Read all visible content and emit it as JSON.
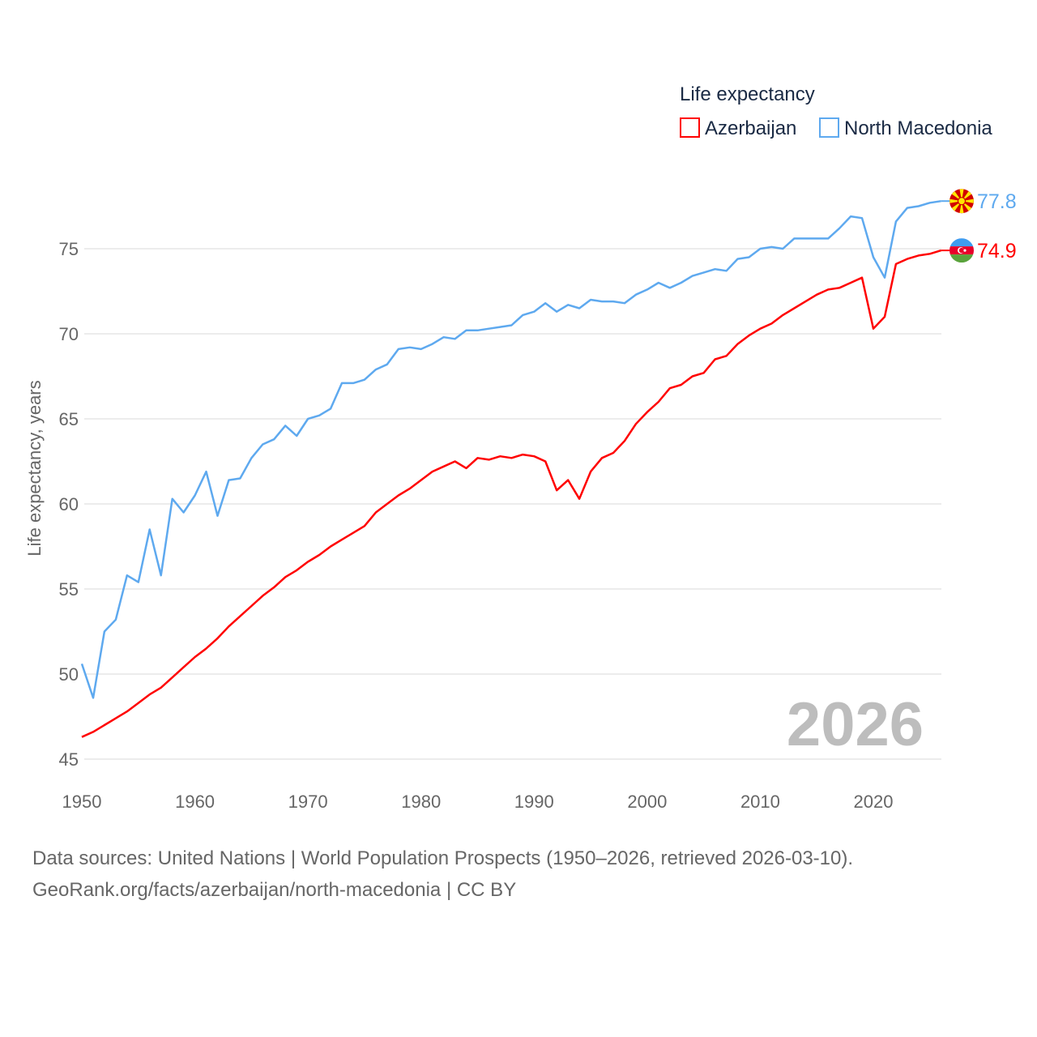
{
  "chart_data": {
    "type": "line",
    "title": "Life expectancy",
    "xlabel": "",
    "ylabel": "Life expectancy, years",
    "xlim": [
      1950,
      2026
    ],
    "ylim": [
      45,
      79
    ],
    "grid": true,
    "legend_position": "top-right",
    "x_ticks": [
      1950,
      1960,
      1970,
      1980,
      1990,
      2000,
      2010,
      2020
    ],
    "y_ticks": [
      45,
      50,
      55,
      60,
      65,
      70,
      75
    ],
    "current_year_label": "2026",
    "series": [
      {
        "name": "Azerbaijan",
        "color": "#ff0000",
        "end_label": "74.9",
        "flag": "azerbaijan-flag",
        "start_year": 1950,
        "values": [
          46.3,
          46.6,
          47.0,
          47.4,
          47.8,
          48.3,
          48.8,
          49.2,
          49.8,
          50.4,
          51.0,
          51.5,
          52.1,
          52.8,
          53.4,
          54.0,
          54.6,
          55.1,
          55.7,
          56.1,
          56.6,
          57.0,
          57.5,
          57.9,
          58.3,
          58.7,
          59.5,
          60.0,
          60.5,
          60.9,
          61.4,
          61.9,
          62.2,
          62.5,
          62.1,
          62.7,
          62.6,
          62.8,
          62.7,
          62.9,
          62.8,
          62.5,
          60.8,
          61.4,
          60.3,
          61.9,
          62.7,
          63.0,
          63.7,
          64.7,
          65.4,
          66.0,
          66.8,
          67.0,
          67.5,
          67.7,
          68.5,
          68.7,
          69.4,
          69.9,
          70.3,
          70.6,
          71.1,
          71.5,
          71.9,
          72.3,
          72.6,
          72.7,
          73.0,
          73.3,
          70.3,
          71.0,
          74.1,
          74.4,
          74.6,
          74.7,
          74.9
        ]
      },
      {
        "name": "North Macedonia",
        "color": "#5ea9ef",
        "end_label": "77.8",
        "flag": "north-macedonia-flag",
        "start_year": 1950,
        "values": [
          50.6,
          48.6,
          52.5,
          53.2,
          55.8,
          55.4,
          58.5,
          55.8,
          60.3,
          59.5,
          60.5,
          61.9,
          59.3,
          61.4,
          61.5,
          62.7,
          63.5,
          63.8,
          64.6,
          64.0,
          65.0,
          65.2,
          65.6,
          67.1,
          67.1,
          67.3,
          67.9,
          68.2,
          69.1,
          69.2,
          69.1,
          69.4,
          69.8,
          69.7,
          70.2,
          70.2,
          70.3,
          70.4,
          70.5,
          71.1,
          71.3,
          71.8,
          71.3,
          71.7,
          71.5,
          72.0,
          71.9,
          71.9,
          71.8,
          72.3,
          72.6,
          73.0,
          72.7,
          73.0,
          73.4,
          73.6,
          73.8,
          73.7,
          74.4,
          74.5,
          75.0,
          75.1,
          75.0,
          75.6,
          75.6,
          75.6,
          75.6,
          76.2,
          76.9,
          76.8,
          74.5,
          73.3,
          76.6,
          77.4,
          77.5,
          77.7,
          77.8
        ]
      }
    ]
  },
  "footer": {
    "sources": "Data sources: United Nations | World Population Prospects (1950–2026, retrieved 2026-03-10).",
    "link": "GeoRank.org/facts/azerbaijan/north-macedonia | CC BY"
  }
}
